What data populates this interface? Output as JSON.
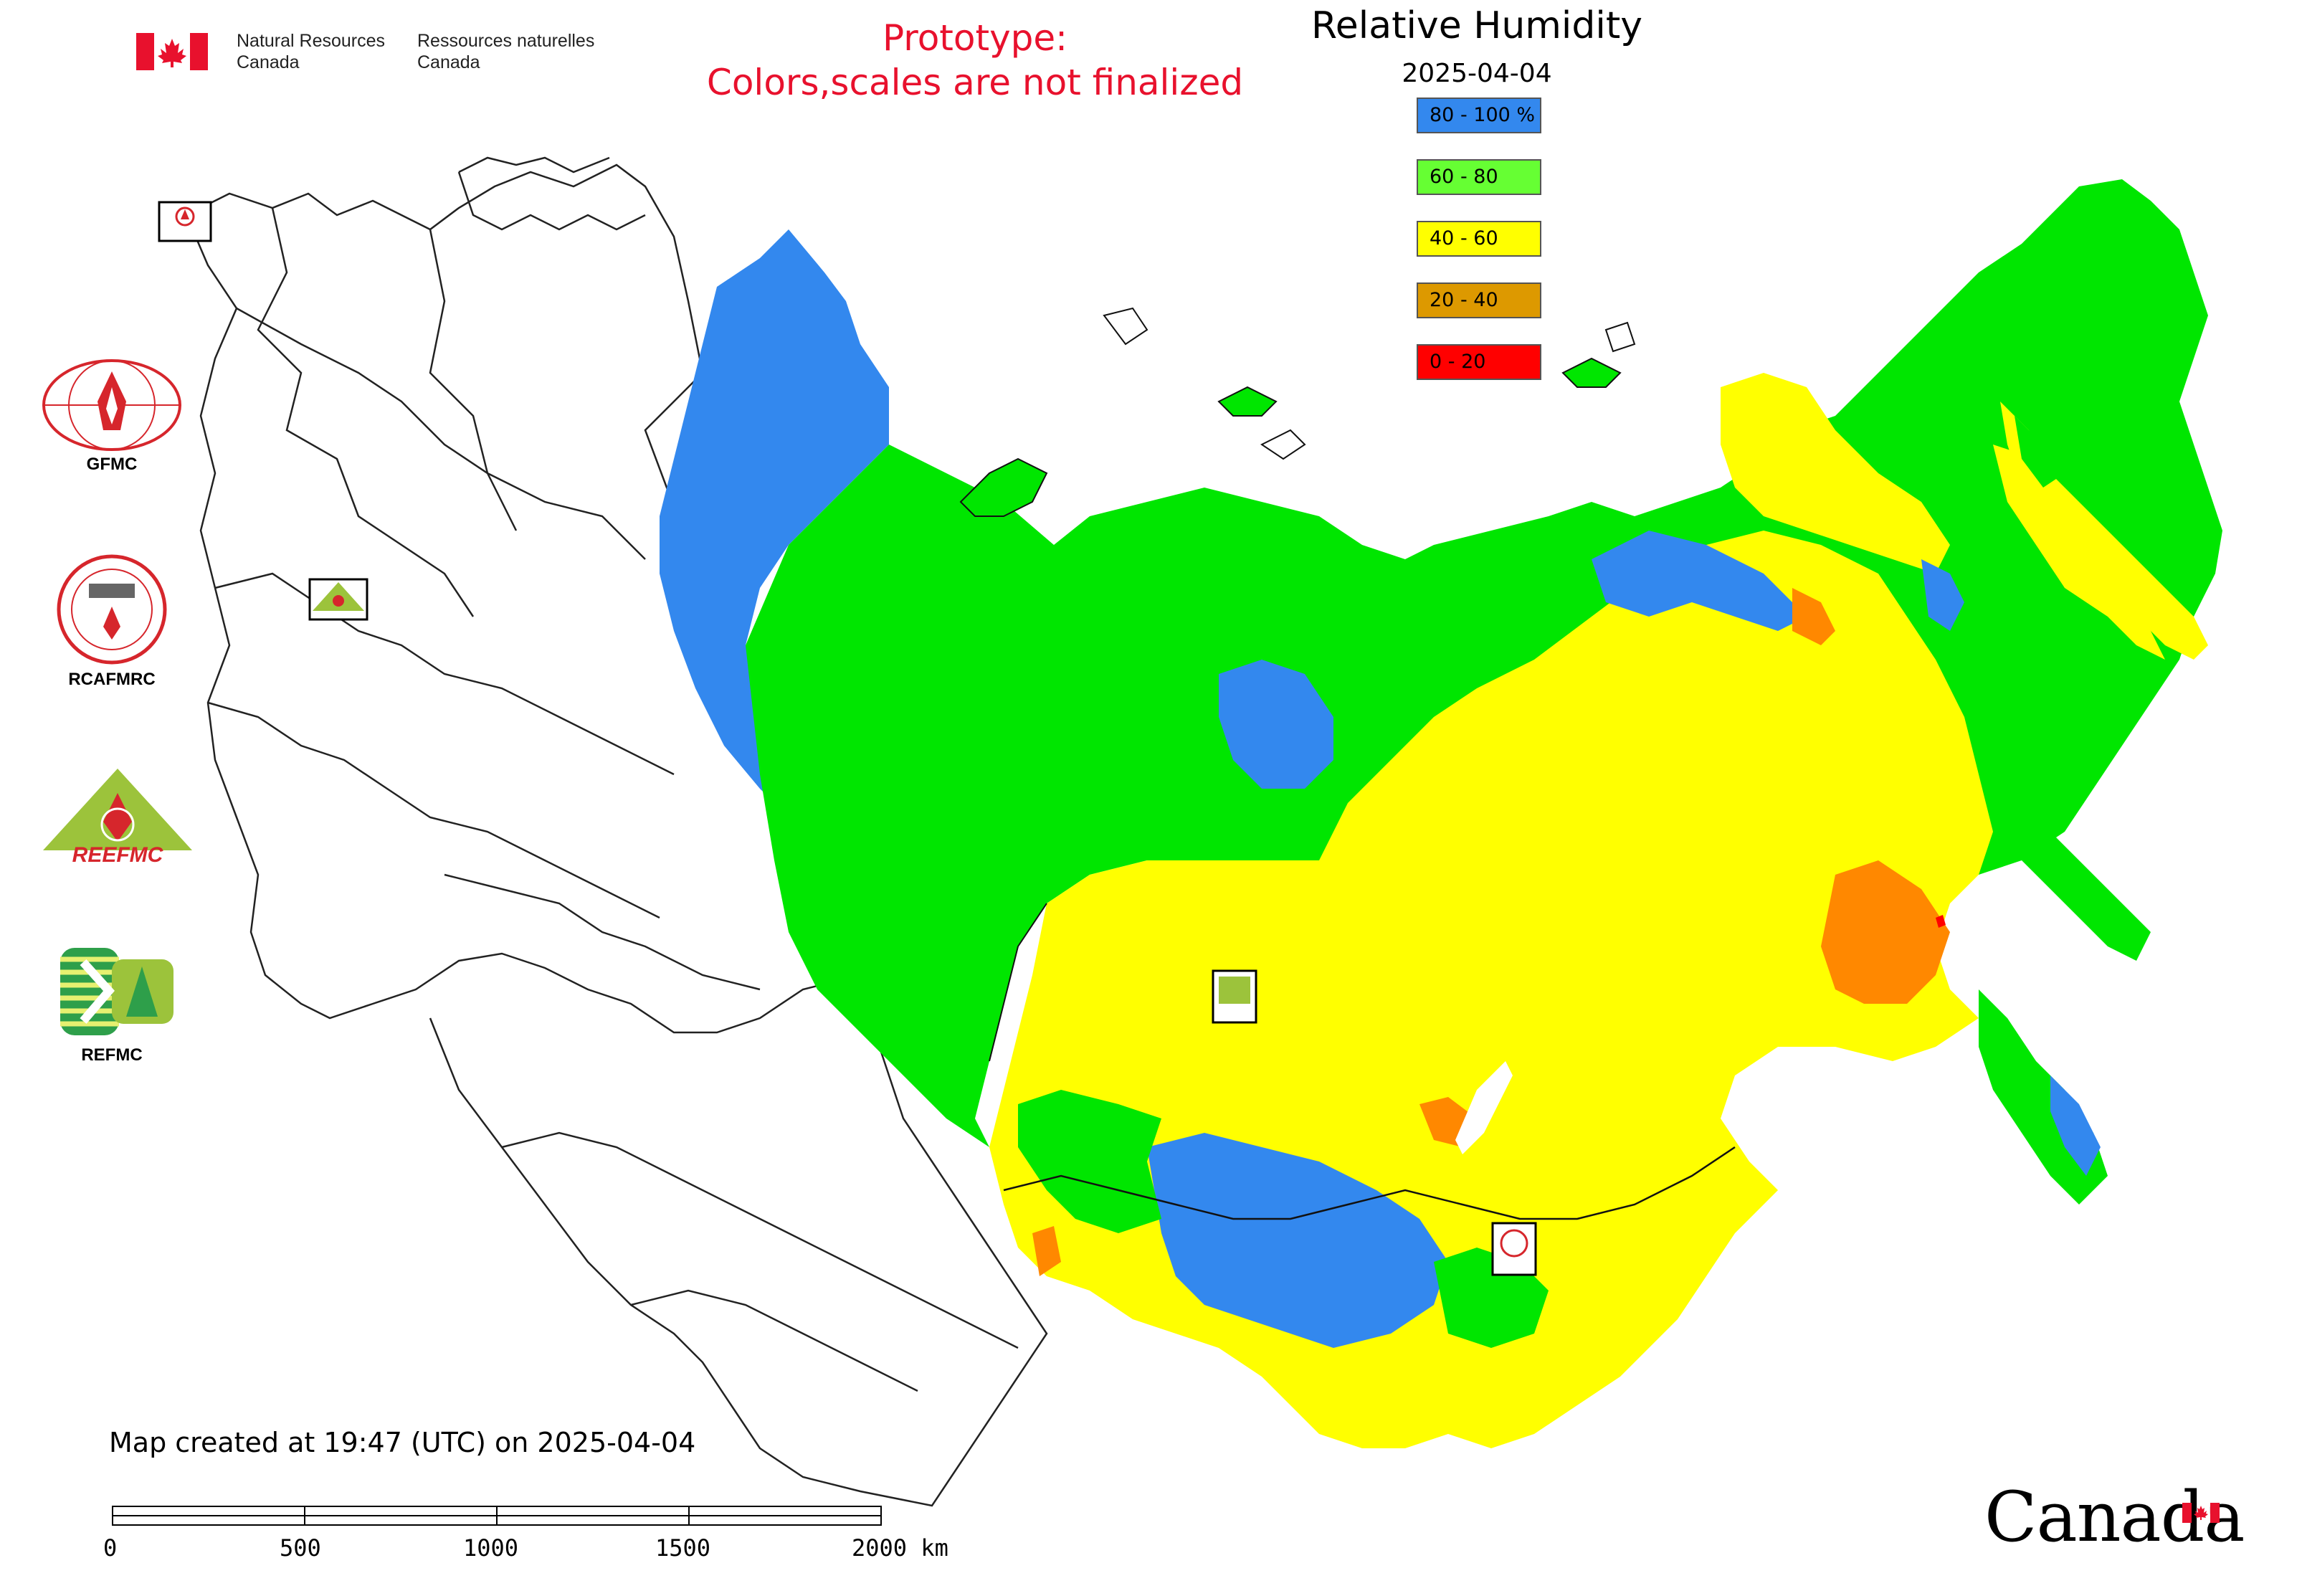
{
  "header": {
    "org_en_line1": "Natural Resources",
    "org_en_line2": "Canada",
    "org_fr_line1": "Ressources naturelles",
    "org_fr_line2": "Canada",
    "prototype_line1": "Prototype:",
    "prototype_line2": "Colors,scales are not finalized"
  },
  "map": {
    "title": "Relative Humidity",
    "date": "2025-04-04",
    "legend": [
      {
        "label": "80 - 100 %",
        "color": "#3388ee"
      },
      {
        "label": "60 - 80",
        "color": "#66ff33"
      },
      {
        "label": "40 - 60",
        "color": "#ffff00"
      },
      {
        "label": "20 - 40",
        "color": "#dd9900"
      },
      {
        "label": "0 - 20",
        "color": "#ff0000"
      }
    ],
    "region_colors": {
      "very_humid": "#3388ee",
      "humid": "#00e600",
      "moderate": "#ffff00",
      "dry": "#ff8800",
      "very_dry": "#ff0000"
    }
  },
  "side_logos": [
    {
      "label": "GFMC",
      "icon": "gfmc-logo"
    },
    {
      "label": "RCAFMRC",
      "icon": "rcafmrc-logo"
    },
    {
      "label": "",
      "icon": "reefmc-logo",
      "wordmark": "REEFMC"
    },
    {
      "label": "REFMC",
      "icon": "refmc-logo"
    }
  ],
  "footer": {
    "created_text": "Map created at 19:47 (UTC) on 2025-04-04",
    "scale_ticks": [
      "0",
      "500",
      "1000",
      "1500",
      "2000 km"
    ],
    "wordmark": "Canada"
  }
}
